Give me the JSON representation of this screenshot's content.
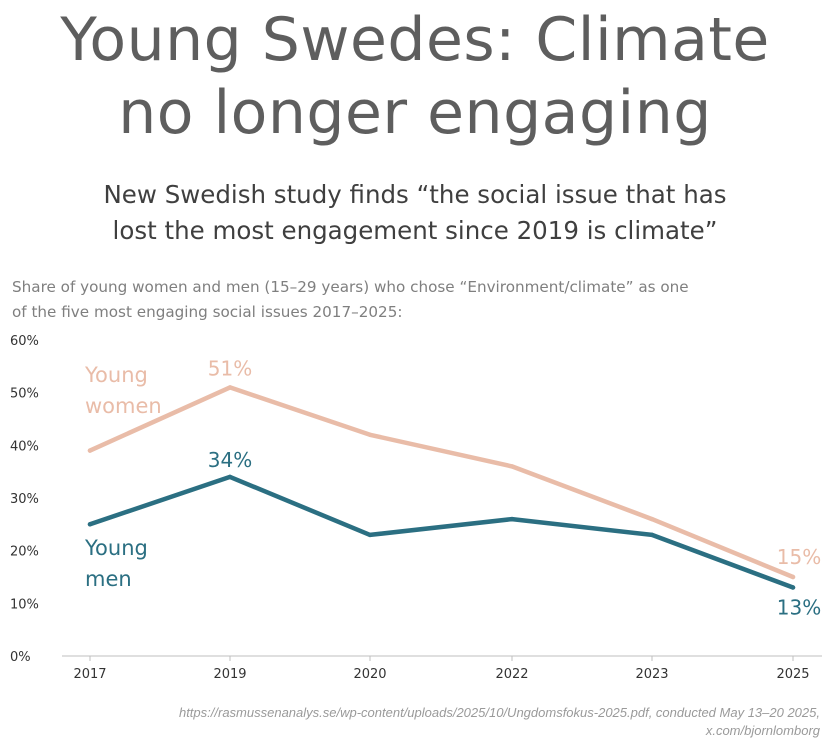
{
  "header": {
    "title_line1": "Young Swedes: Climate",
    "title_line2": "no longer engaging",
    "subtitle_line1": "New Swedish study finds “the social issue that has",
    "subtitle_line2": "lost the most engagement since 2019 is climate”",
    "description_line1": "Share of young women and men (15–29 years) who chose “Environment/climate” as one",
    "description_line2": "of the five most engaging social issues 2017–2025:"
  },
  "chart_data": {
    "type": "line",
    "categories": [
      "2017",
      "2019",
      "2020",
      "2022",
      "2023",
      "2025"
    ],
    "ylim": [
      0,
      60
    ],
    "yticks": [
      0,
      10,
      20,
      30,
      40,
      50,
      60
    ],
    "ytick_labels": [
      "0%",
      "10%",
      "20%",
      "30%",
      "40%",
      "50%",
      "60%"
    ],
    "grid": false,
    "series": [
      {
        "name": "Young women",
        "label_line1": "Young",
        "label_line2": "women",
        "color": "#e9bca8",
        "values": [
          39,
          51,
          42,
          36,
          26,
          15
        ],
        "annotations": [
          {
            "index": 1,
            "text": "51%"
          },
          {
            "index": 5,
            "text": "15%"
          }
        ]
      },
      {
        "name": "Young men",
        "label_line1": "Young",
        "label_line2": "men",
        "color": "#2b6f82",
        "values": [
          25,
          34,
          23,
          26,
          23,
          13
        ],
        "annotations": [
          {
            "index": 1,
            "text": "34%"
          },
          {
            "index": 5,
            "text": "13%"
          }
        ]
      }
    ]
  },
  "footer": {
    "source_line1": "https://rasmussenanalys.se/wp-content/uploads/2025/10/Ungdomsfokus-2025.pdf, conducted May 13–20 2025,",
    "source_line2": "x.com/bjornlomborg"
  }
}
